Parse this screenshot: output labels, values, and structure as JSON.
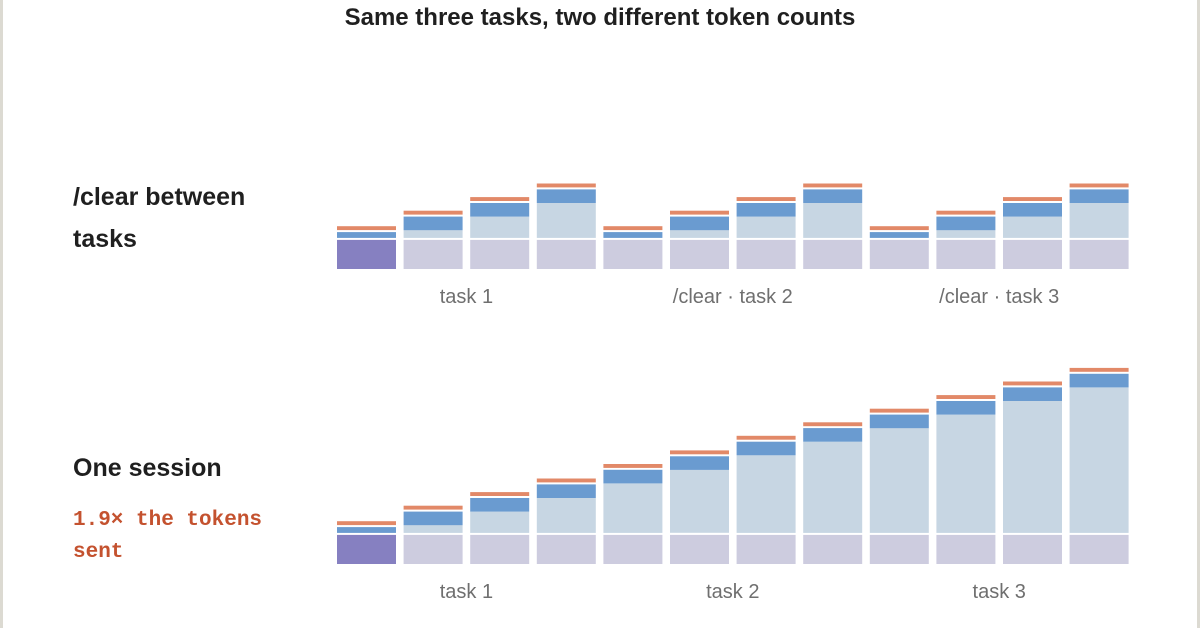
{
  "title": "Same three tasks, two different token counts",
  "colors": {
    "system": "#8680c1",
    "history": "#cdccdf",
    "context": "#c7d6e3",
    "input": "#6a9bd0",
    "output": "#e28968"
  },
  "chart_data": [
    {
      "type": "bar",
      "stacked": true,
      "label": "/clear between tasks",
      "groups": [
        "task 1",
        "/clear · task 2",
        "/clear · task 3"
      ],
      "series_order": [
        "base",
        "carried",
        "input",
        "output"
      ],
      "bars": [
        {
          "base": 30,
          "carried": 0,
          "input": 6,
          "output": 4
        },
        {
          "base": 30,
          "carried": 8,
          "input": 14,
          "output": 4
        },
        {
          "base": 30,
          "carried": 22,
          "input": 14,
          "output": 4
        },
        {
          "base": 30,
          "carried": 36,
          "input": 14,
          "output": 4
        },
        {
          "base": 30,
          "carried": 0,
          "input": 6,
          "output": 4
        },
        {
          "base": 30,
          "carried": 8,
          "input": 14,
          "output": 4
        },
        {
          "base": 30,
          "carried": 22,
          "input": 14,
          "output": 4
        },
        {
          "base": 30,
          "carried": 36,
          "input": 14,
          "output": 4
        },
        {
          "base": 30,
          "carried": 0,
          "input": 6,
          "output": 4
        },
        {
          "base": 30,
          "carried": 8,
          "input": 14,
          "output": 4
        },
        {
          "base": 30,
          "carried": 22,
          "input": 14,
          "output": 4
        },
        {
          "base": 30,
          "carried": 36,
          "input": 14,
          "output": 4
        }
      ],
      "first_base_highlight": true
    },
    {
      "type": "bar",
      "stacked": true,
      "label": "One session",
      "note": "1.9× the tokens sent",
      "groups": [
        "task 1",
        "task 2",
        "task 3"
      ],
      "series_order": [
        "base",
        "carried",
        "input",
        "output"
      ],
      "bars": [
        {
          "base": 30,
          "carried": 0,
          "input": 6,
          "output": 4
        },
        {
          "base": 30,
          "carried": 8,
          "input": 14,
          "output": 4
        },
        {
          "base": 30,
          "carried": 22,
          "input": 14,
          "output": 4
        },
        {
          "base": 30,
          "carried": 36,
          "input": 14,
          "output": 4
        },
        {
          "base": 30,
          "carried": 51,
          "input": 14,
          "output": 4
        },
        {
          "base": 30,
          "carried": 65,
          "input": 14,
          "output": 4
        },
        {
          "base": 30,
          "carried": 80,
          "input": 14,
          "output": 4
        },
        {
          "base": 30,
          "carried": 94,
          "input": 14,
          "output": 4
        },
        {
          "base": 30,
          "carried": 108,
          "input": 14,
          "output": 4
        },
        {
          "base": 30,
          "carried": 122,
          "input": 14,
          "output": 4
        },
        {
          "base": 30,
          "carried": 136,
          "input": 14,
          "output": 4
        },
        {
          "base": 30,
          "carried": 150,
          "input": 14,
          "output": 4
        }
      ],
      "first_base_highlight": true
    }
  ]
}
